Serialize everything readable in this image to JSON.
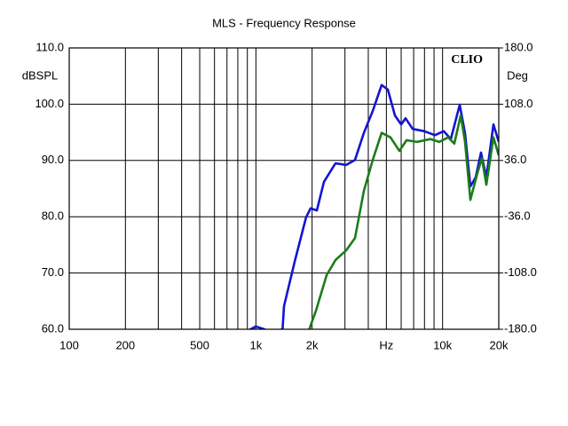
{
  "chart_data": {
    "type": "line",
    "title": "MLS - Frequency Response",
    "annotation": "CLIO",
    "ylabel": "dBSPL",
    "y2label": "Deg",
    "xscale": "log",
    "grid": true,
    "xlim": [
      100,
      20000
    ],
    "xticks": [
      100,
      200,
      500,
      {
        "value": 1000,
        "label": "1k"
      },
      {
        "value": 2000,
        "label": "2k"
      },
      {
        "value": 5000,
        "label": "Hz"
      },
      {
        "value": 10000,
        "label": "10k"
      },
      {
        "value": 20000,
        "label": "20k"
      }
    ],
    "xgrid_minor": [
      300,
      400,
      600,
      700,
      800,
      900,
      3000,
      4000,
      6000,
      7000,
      8000,
      9000
    ],
    "ylim": [
      60,
      110
    ],
    "yticks": [
      {
        "value": 60,
        "label": "60.0"
      },
      {
        "value": 70,
        "label": "70.0"
      },
      {
        "value": 80,
        "label": "80.0"
      },
      {
        "value": 90,
        "label": "90.0"
      },
      {
        "value": 100,
        "label": "100.0"
      },
      {
        "value": 110,
        "label": "110.0"
      }
    ],
    "y2lim": [
      -180,
      180
    ],
    "y2ticks": [
      {
        "value": -180,
        "label": "-180.0"
      },
      {
        "value": -108,
        "label": "-108.0"
      },
      {
        "value": -36,
        "label": "-36.0"
      },
      {
        "value": 36,
        "label": "36.0"
      },
      {
        "value": 108,
        "label": "108.0"
      },
      {
        "value": 180,
        "label": "180.0"
      }
    ],
    "series": [
      {
        "color": "#1414d2",
        "x": [
          912,
          1000,
          1110,
          1190,
          1390,
          1414,
          1612,
          1858,
          1964,
          2120,
          2314,
          2669,
          3043,
          3395,
          3787,
          4226,
          4714,
          5093,
          5559,
          5998,
          6338,
          6918,
          7977,
          9097,
          10140,
          11070,
          12350,
          13190,
          14090,
          15040,
          16070,
          17150,
          18720,
          20000
        ],
        "values": [
          59.8,
          60.5,
          60.0,
          59.4,
          60.0,
          64.1,
          72.0,
          79.9,
          81.5,
          81.1,
          86.2,
          89.5,
          89.2,
          90.1,
          94.9,
          98.8,
          103.4,
          102.6,
          98.0,
          96.4,
          97.5,
          95.6,
          95.2,
          94.5,
          95.2,
          93.8,
          99.9,
          94.8,
          85.4,
          87.0,
          91.4,
          87.0,
          96.4,
          93.3
        ]
      },
      {
        "color": "#1a7d1a",
        "x": [
          1922,
          2097,
          2392,
          2669,
          3043,
          3395,
          3787,
          4226,
          4714,
          5260,
          5870,
          6412,
          7308,
          8610,
          9610,
          10720,
          11560,
          12500,
          13190,
          14090,
          15380,
          16240,
          17150,
          18720,
          20000
        ],
        "values": [
          59.8,
          63.3,
          69.6,
          72.3,
          74.0,
          76.2,
          84.6,
          90.1,
          94.9,
          94.1,
          91.7,
          93.6,
          93.3,
          93.8,
          93.3,
          94.1,
          93.0,
          98.0,
          93.3,
          83.0,
          87.8,
          90.4,
          85.7,
          94.1,
          90.9
        ]
      }
    ]
  }
}
